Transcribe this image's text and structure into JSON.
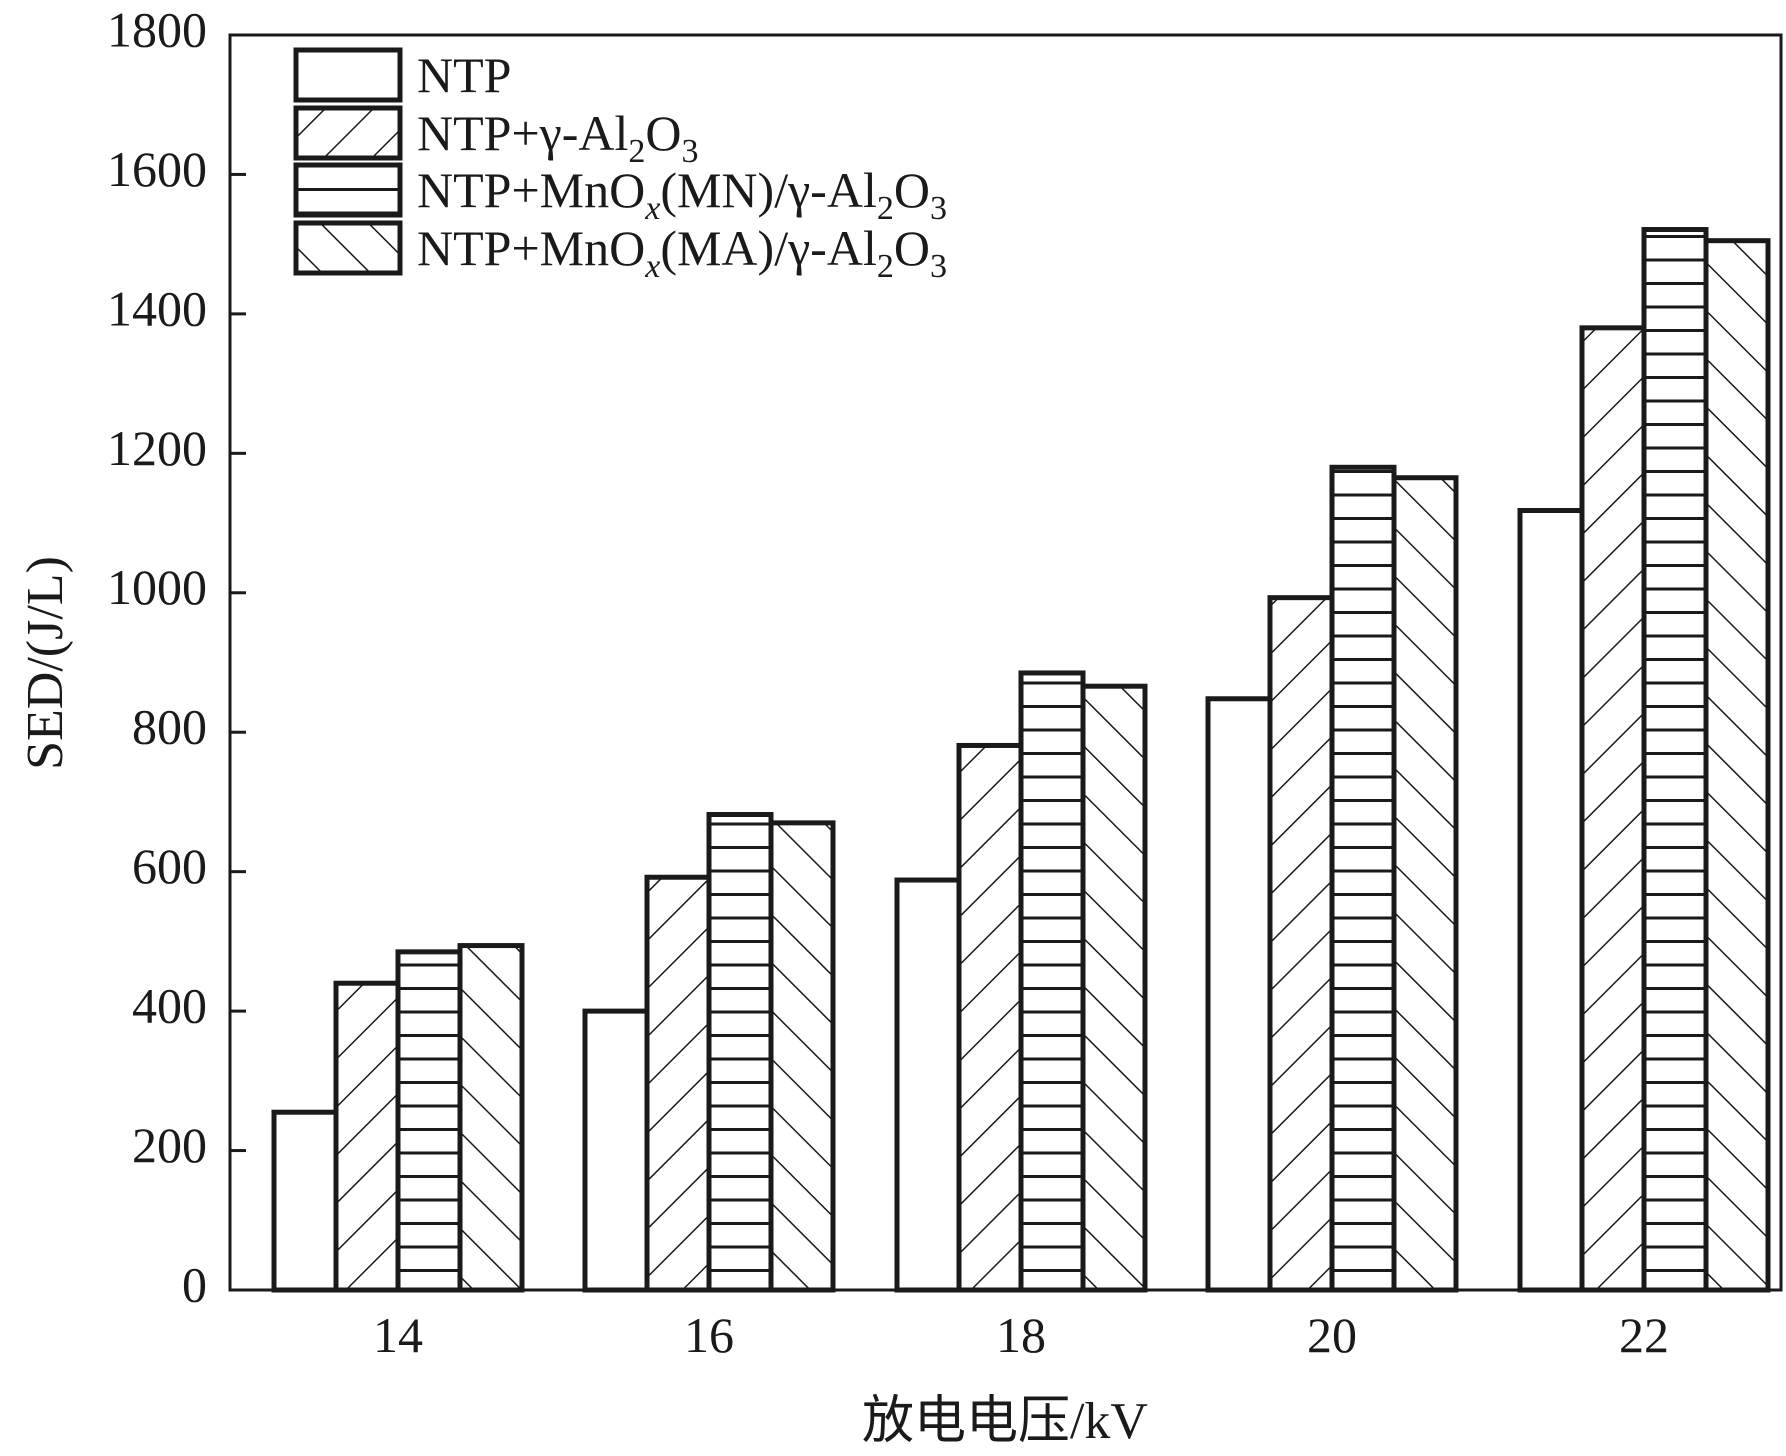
{
  "chart_data": {
    "type": "bar",
    "title": "",
    "xlabel": "放电电压/kV",
    "ylabel": "SED/(J/L)",
    "categories": [
      "14",
      "16",
      "18",
      "20",
      "22"
    ],
    "ylim": [
      0,
      1800
    ],
    "yticks": [
      "0",
      "200",
      "400",
      "600",
      "800",
      "1000",
      "1200",
      "1400",
      "1600",
      "1800"
    ],
    "legend_position": "top-left",
    "series": [
      {
        "name": "NTP",
        "pattern": "none",
        "legend_parts": [
          {
            "t": "NTP"
          }
        ],
        "values": [
          255,
          400,
          588,
          848,
          1118
        ]
      },
      {
        "name": "NTP+γ-Al2O3",
        "pattern": "diag-up",
        "legend_parts": [
          {
            "t": "NTP+γ-Al"
          },
          {
            "t": "2",
            "sub": true
          },
          {
            "t": "O"
          },
          {
            "t": "3",
            "sub": true
          }
        ],
        "values": [
          440,
          592,
          781,
          993,
          1380
        ]
      },
      {
        "name": "NTP+MnOx(MN)/γ-Al2O3",
        "pattern": "horizontal",
        "legend_parts": [
          {
            "t": "NTP+MnO"
          },
          {
            "t": "x",
            "sub": true,
            "italic": true
          },
          {
            "t": "(MN)/γ-Al"
          },
          {
            "t": "2",
            "sub": true
          },
          {
            "t": "O"
          },
          {
            "t": "3",
            "sub": true
          }
        ],
        "values": [
          485,
          682,
          885,
          1180,
          1521
        ]
      },
      {
        "name": "NTP+MnOx(MA)/γ-Al2O3",
        "pattern": "diag-down",
        "legend_parts": [
          {
            "t": "NTP+MnO"
          },
          {
            "t": "x",
            "sub": true,
            "italic": true
          },
          {
            "t": "(MA)/γ-Al"
          },
          {
            "t": "2",
            "sub": true
          },
          {
            "t": "O"
          },
          {
            "t": "3",
            "sub": true
          }
        ],
        "values": [
          494,
          670,
          866,
          1165,
          1505
        ]
      }
    ],
    "colors": {
      "stroke": "#1a1a1a",
      "fill": "#ffffff"
    }
  }
}
